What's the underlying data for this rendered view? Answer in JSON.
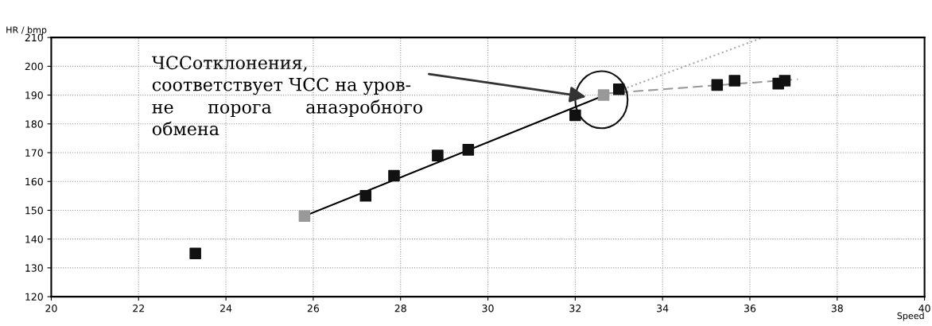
{
  "chart_data": {
    "type": "scatter",
    "xlabel": "Speed",
    "ylabel": "HR / bmp",
    "xlim": [
      20,
      40
    ],
    "ylim": [
      120,
      210
    ],
    "xticks": [
      20,
      22,
      24,
      26,
      28,
      30,
      32,
      34,
      36,
      38,
      40
    ],
    "yticks": [
      120,
      130,
      140,
      150,
      160,
      170,
      180,
      190,
      200,
      210
    ],
    "grid": true,
    "series": [
      {
        "type": "line",
        "color": "#000000",
        "line_style": "solid",
        "marker": "none",
        "x": [
          25.8,
          32.6
        ],
        "values": [
          148,
          189.5
        ]
      },
      {
        "type": "line",
        "color": "#999999",
        "line_style": "dashed",
        "marker": "none",
        "x": [
          32.65,
          37.1
        ],
        "values": [
          190.5,
          195.5
        ]
      },
      {
        "type": "line",
        "color": "#aaaaaa",
        "line_style": "dotted",
        "marker": "none",
        "x": [
          33.0,
          36.3
        ],
        "values": [
          191.5,
          210
        ]
      },
      {
        "color": "#111111",
        "marker": "square",
        "x": [
          23.3,
          27.2,
          27.85,
          28.85,
          29.55,
          32.0,
          33.0,
          35.25,
          35.65,
          36.65,
          36.8
        ],
        "values": [
          135,
          155,
          162,
          169,
          171,
          183,
          192,
          193.5,
          195,
          194,
          195
        ]
      },
      {
        "color": "#999999",
        "marker": "square",
        "x": [
          25.8,
          32.65
        ],
        "values": [
          148,
          190
        ]
      }
    ],
    "annotations": [
      "ЧССотклонения,\nсоответствует ЧСС на уров-\nне      порога      анаэробного\nобмена"
    ]
  }
}
